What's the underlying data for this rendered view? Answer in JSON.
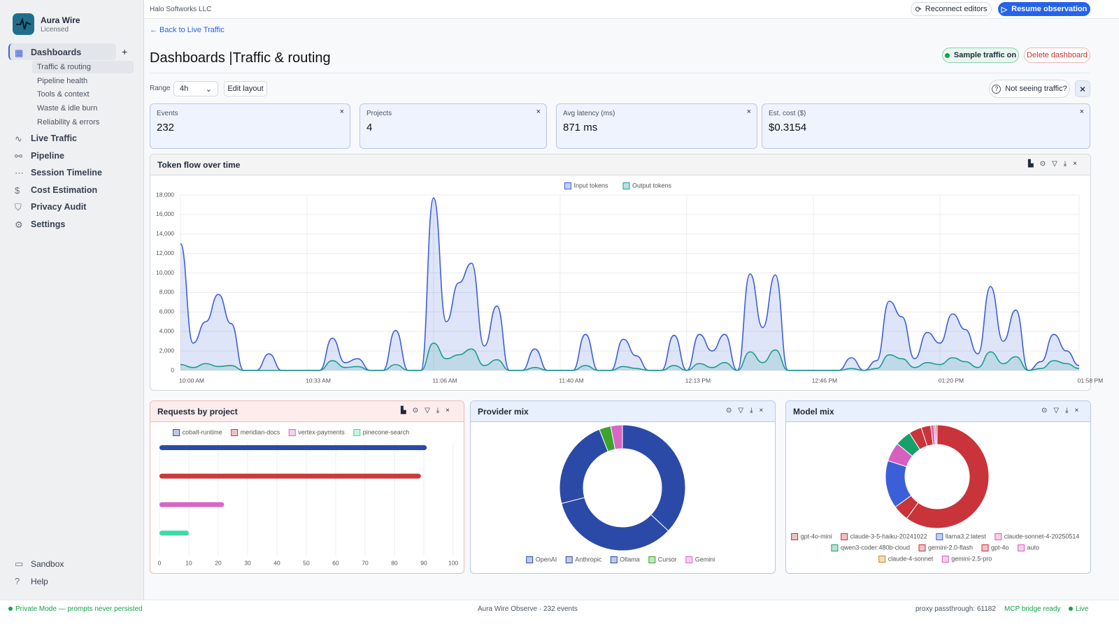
{
  "sidebar": {
    "app_name": "Aura Wire",
    "license": "Licensed",
    "nav": [
      {
        "label": "Dashboards",
        "children": [
          "Traffic & routing",
          "Pipeline health",
          "Tools & context",
          "Waste & idle burn",
          "Reliability & errors"
        ]
      },
      {
        "label": "Live Traffic"
      },
      {
        "label": "Pipeline"
      },
      {
        "label": "Session Timeline"
      },
      {
        "label": "Cost Estimation"
      },
      {
        "label": "Privacy Audit"
      },
      {
        "label": "Settings"
      }
    ],
    "bottom": [
      "Sandbox",
      "Help"
    ]
  },
  "header": {
    "org": "Halo Softworks LLC",
    "reconnect": "Reconnect editors",
    "resume": "Resume observation",
    "back_link": "← Back to Live Traffic",
    "title_main": "Dashboards",
    "title_sub": "Traffic & routing",
    "sample": "Sample traffic on",
    "delete": "Delete dashboard",
    "range_label": "Range",
    "range_value": "4h",
    "edit_layout": "Edit layout",
    "help": "Not seeing traffic?"
  },
  "kpis": [
    {
      "label": "Events",
      "value": "232"
    },
    {
      "label": "Projects",
      "value": "4"
    },
    {
      "label": "Avg latency (ms)",
      "value": "871 ms"
    },
    {
      "label": "Est. cost ($)",
      "value": "$0.3154"
    }
  ],
  "chart_data": [
    {
      "type": "line",
      "title": "Token flow over time",
      "categories": [
        "10:00 AM",
        null,
        null,
        null,
        null,
        null,
        null,
        null,
        null,
        null,
        "10:33 AM",
        null,
        null,
        null,
        null,
        null,
        null,
        null,
        null,
        null,
        "11:06 AM",
        null,
        null,
        null,
        null,
        null,
        null,
        null,
        null,
        null,
        "11:40 AM",
        null,
        null,
        null,
        null,
        null,
        null,
        null,
        null,
        null,
        "12:13 PM",
        null,
        null,
        null,
        null,
        null,
        null,
        null,
        null,
        null,
        "12:46 PM",
        null,
        null,
        null,
        null,
        null,
        null,
        null,
        null,
        null,
        "01:20 PM",
        null,
        null,
        null,
        null,
        null,
        null,
        null,
        null,
        null,
        null,
        "01:58 PM"
      ],
      "series": [
        {
          "name": "Input tokens",
          "color": "#3b5fd9",
          "values": [
            13000,
            2800,
            5000,
            7800,
            4800,
            0,
            0,
            1700,
            0,
            0,
            0,
            0,
            3300,
            800,
            1200,
            0,
            0,
            4100,
            0,
            0,
            17700,
            5000,
            9000,
            11000,
            2500,
            6600,
            0,
            0,
            2200,
            0,
            0,
            0,
            3700,
            0,
            0,
            3200,
            1500,
            0,
            0,
            3600,
            0,
            3700,
            2000,
            3700,
            0,
            9900,
            4400,
            9800,
            0,
            0,
            0,
            0,
            0,
            1300,
            0,
            1000,
            7100,
            5500,
            1200,
            3900,
            2800,
            5800,
            4200,
            1700,
            8600,
            3000,
            6200,
            0,
            900,
            3700,
            2000,
            500
          ]
        },
        {
          "name": "Output tokens",
          "color": "#1a9e8f",
          "values": [
            600,
            300,
            700,
            400,
            500,
            0,
            0,
            0,
            0,
            0,
            0,
            0,
            1000,
            300,
            400,
            0,
            0,
            600,
            0,
            0,
            2800,
            1200,
            1600,
            2200,
            500,
            1100,
            0,
            0,
            300,
            0,
            0,
            0,
            500,
            0,
            0,
            400,
            200,
            0,
            0,
            500,
            0,
            700,
            300,
            800,
            0,
            1900,
            800,
            2100,
            0,
            0,
            0,
            0,
            0,
            200,
            0,
            200,
            1600,
            1200,
            300,
            800,
            600,
            1300,
            900,
            300,
            1900,
            700,
            1400,
            0,
            200,
            1000,
            700,
            200
          ]
        }
      ],
      "ylim": [
        0,
        18000
      ],
      "yticks": [
        0,
        {
          "value": 2000,
          "label": "2,000"
        },
        {
          "value": 4000,
          "label": "4,000"
        },
        {
          "value": 6000,
          "label": "6,000"
        },
        {
          "value": 8000,
          "label": "8,000"
        },
        {
          "value": 10000,
          "label": "10,000"
        },
        {
          "value": 12000,
          "label": "12,000"
        },
        {
          "value": 14000,
          "label": "14,000"
        },
        {
          "value": 16000,
          "label": "16,000"
        },
        {
          "value": 18000,
          "label": "18,000"
        }
      ],
      "grid": true,
      "legend": "top"
    },
    {
      "type": "hbar",
      "title": "Requests by project",
      "categories": [
        "cobalt-runtime",
        "meridian-docs",
        "vertex-payments",
        "pinecone-search"
      ],
      "values": [
        91,
        89,
        22,
        10
      ],
      "colors": [
        "#2b4aa8",
        "#c93a3a",
        "#d966c4",
        "#3ddba6"
      ],
      "xlim": [
        0,
        100
      ],
      "xticks": [
        0,
        10,
        20,
        30,
        40,
        50,
        60,
        70,
        80,
        90,
        100
      ],
      "grid": true,
      "legend": "top"
    },
    {
      "type": "doughnut",
      "title": "Provider mix",
      "categories": [
        "OpenAI",
        "Anthropic",
        "Ollama",
        "Cursor",
        "Gemini"
      ],
      "values": [
        37,
        34,
        23,
        3,
        3
      ],
      "colors": [
        "#2b4aa8",
        "#2b4aa8",
        "#2b4aa8",
        "#3aa52a",
        "#d966c4"
      ],
      "legend": "bottom"
    },
    {
      "type": "doughnut",
      "title": "Model mix",
      "categories": [
        "gpt-4o-mini",
        "claude-3-5-haiku-20241022",
        "llama3.2:latest",
        "claude-sonnet-4-20250514",
        "qwen3-coder:480b-cloud",
        "gemini-2.0-flash",
        "gpt-4o",
        "auto",
        "claude-4-sonnet",
        "gemini-2.5-pro"
      ],
      "values": [
        60,
        5,
        15,
        6,
        5,
        4,
        3,
        1,
        0.5,
        0.5
      ],
      "colors": [
        "#c8343a",
        "#c8343a",
        "#3a5fd9",
        "#d65fbf",
        "#16a06a",
        "#c8343a",
        "#c8343a",
        "#d65fbf",
        "#d08a1a",
        "#d65fbf"
      ],
      "legend": "bottom"
    }
  ],
  "footer": {
    "privacy": "Private Mode — prompts never persisted",
    "product": "Aura Wire Observe",
    "events": "232 events",
    "proxy": "proxy passthrough: 61182",
    "mcp": "MCP bridge ready",
    "live": "Live"
  }
}
